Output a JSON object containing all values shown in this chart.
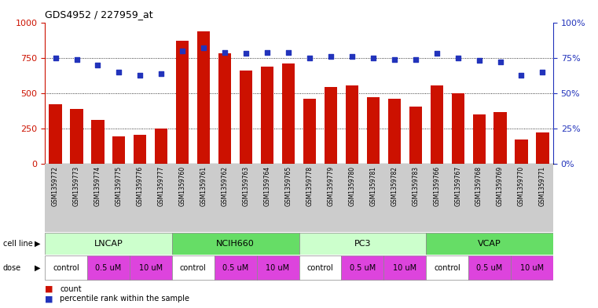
{
  "title": "GDS4952 / 227959_at",
  "samples": [
    "GSM1359772",
    "GSM1359773",
    "GSM1359774",
    "GSM1359775",
    "GSM1359776",
    "GSM1359777",
    "GSM1359760",
    "GSM1359761",
    "GSM1359762",
    "GSM1359763",
    "GSM1359764",
    "GSM1359765",
    "GSM1359778",
    "GSM1359779",
    "GSM1359780",
    "GSM1359781",
    "GSM1359782",
    "GSM1359783",
    "GSM1359766",
    "GSM1359767",
    "GSM1359768",
    "GSM1359769",
    "GSM1359770",
    "GSM1359771"
  ],
  "counts": [
    425,
    390,
    315,
    195,
    205,
    250,
    870,
    940,
    780,
    660,
    690,
    710,
    460,
    545,
    555,
    475,
    460,
    405,
    555,
    500,
    350,
    370,
    175,
    225
  ],
  "percentiles": [
    75,
    74,
    70,
    65,
    63,
    64,
    80,
    82,
    79,
    78,
    79,
    79,
    75,
    76,
    76,
    75,
    74,
    74,
    78,
    75,
    73,
    72,
    63,
    65
  ],
  "cell_lines": [
    {
      "name": "LNCAP",
      "start": 0,
      "end": 6,
      "color": "#ccffcc"
    },
    {
      "name": "NCIH660",
      "start": 6,
      "end": 12,
      "color": "#66dd66"
    },
    {
      "name": "PC3",
      "start": 12,
      "end": 18,
      "color": "#ccffcc"
    },
    {
      "name": "VCAP",
      "start": 18,
      "end": 24,
      "color": "#66dd66"
    }
  ],
  "doses": [
    {
      "name": "control",
      "start": 0,
      "end": 2,
      "color": "#ffffff"
    },
    {
      "name": "0.5 uM",
      "start": 2,
      "end": 4,
      "color": "#dd44dd"
    },
    {
      "name": "10 uM",
      "start": 4,
      "end": 6,
      "color": "#dd44dd"
    },
    {
      "name": "control",
      "start": 6,
      "end": 8,
      "color": "#ffffff"
    },
    {
      "name": "0.5 uM",
      "start": 8,
      "end": 10,
      "color": "#dd44dd"
    },
    {
      "name": "10 uM",
      "start": 10,
      "end": 12,
      "color": "#dd44dd"
    },
    {
      "name": "control",
      "start": 12,
      "end": 14,
      "color": "#ffffff"
    },
    {
      "name": "0.5 uM",
      "start": 14,
      "end": 16,
      "color": "#dd44dd"
    },
    {
      "name": "10 uM",
      "start": 16,
      "end": 18,
      "color": "#dd44dd"
    },
    {
      "name": "control",
      "start": 18,
      "end": 20,
      "color": "#ffffff"
    },
    {
      "name": "0.5 uM",
      "start": 20,
      "end": 22,
      "color": "#dd44dd"
    },
    {
      "name": "10 uM",
      "start": 22,
      "end": 24,
      "color": "#dd44dd"
    }
  ],
  "bar_color": "#cc1100",
  "dot_color": "#2233bb",
  "left_ylim": [
    0,
    1000
  ],
  "right_ylim": [
    0,
    100
  ],
  "left_yticks": [
    0,
    250,
    500,
    750,
    1000
  ],
  "right_yticks": [
    0,
    25,
    50,
    75,
    100
  ],
  "right_yticklabels": [
    "0%",
    "25%",
    "50%",
    "75%",
    "100%"
  ],
  "grid_values": [
    250,
    500,
    750
  ],
  "plot_bg": "#ffffff",
  "sample_bg": "#cccccc",
  "fig_bg": "#ffffff"
}
